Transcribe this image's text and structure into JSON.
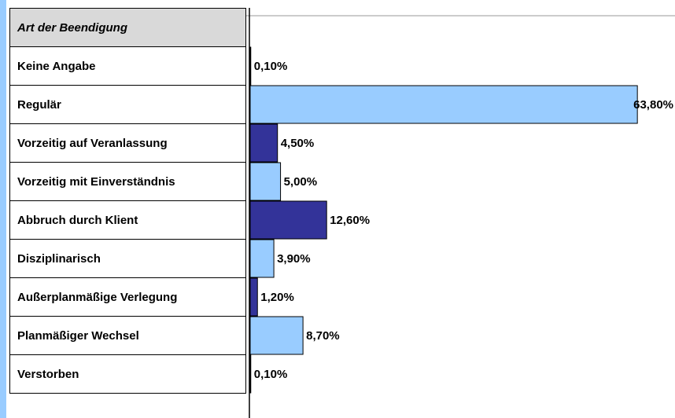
{
  "chart_data": {
    "type": "bar",
    "orientation": "horizontal",
    "header": "Art der Beendigung",
    "categories": [
      "Keine Angabe",
      "Regulär",
      "Vorzeitig auf Veranlassung",
      "Vorzeitig mit Einverständnis",
      "Abbruch durch Klient",
      "Disziplinarisch",
      "Außerplanmäßige Verlegung",
      "Planmäßiger Wechsel",
      "Verstorben"
    ],
    "values": [
      0.1,
      63.8,
      4.5,
      5.0,
      12.6,
      3.9,
      1.2,
      8.7,
      0.1
    ],
    "value_labels": [
      "0,10%",
      "63,80%",
      "4,50%",
      "5,00%",
      "12,60%",
      "3,90%",
      "1,20%",
      "8,70%",
      "0,10%"
    ],
    "colors": [
      "#333399",
      "#99ccff",
      "#333399",
      "#99ccff",
      "#333399",
      "#99ccff",
      "#333399",
      "#99ccff",
      "#333399"
    ],
    "xlim": [
      0,
      70
    ]
  }
}
